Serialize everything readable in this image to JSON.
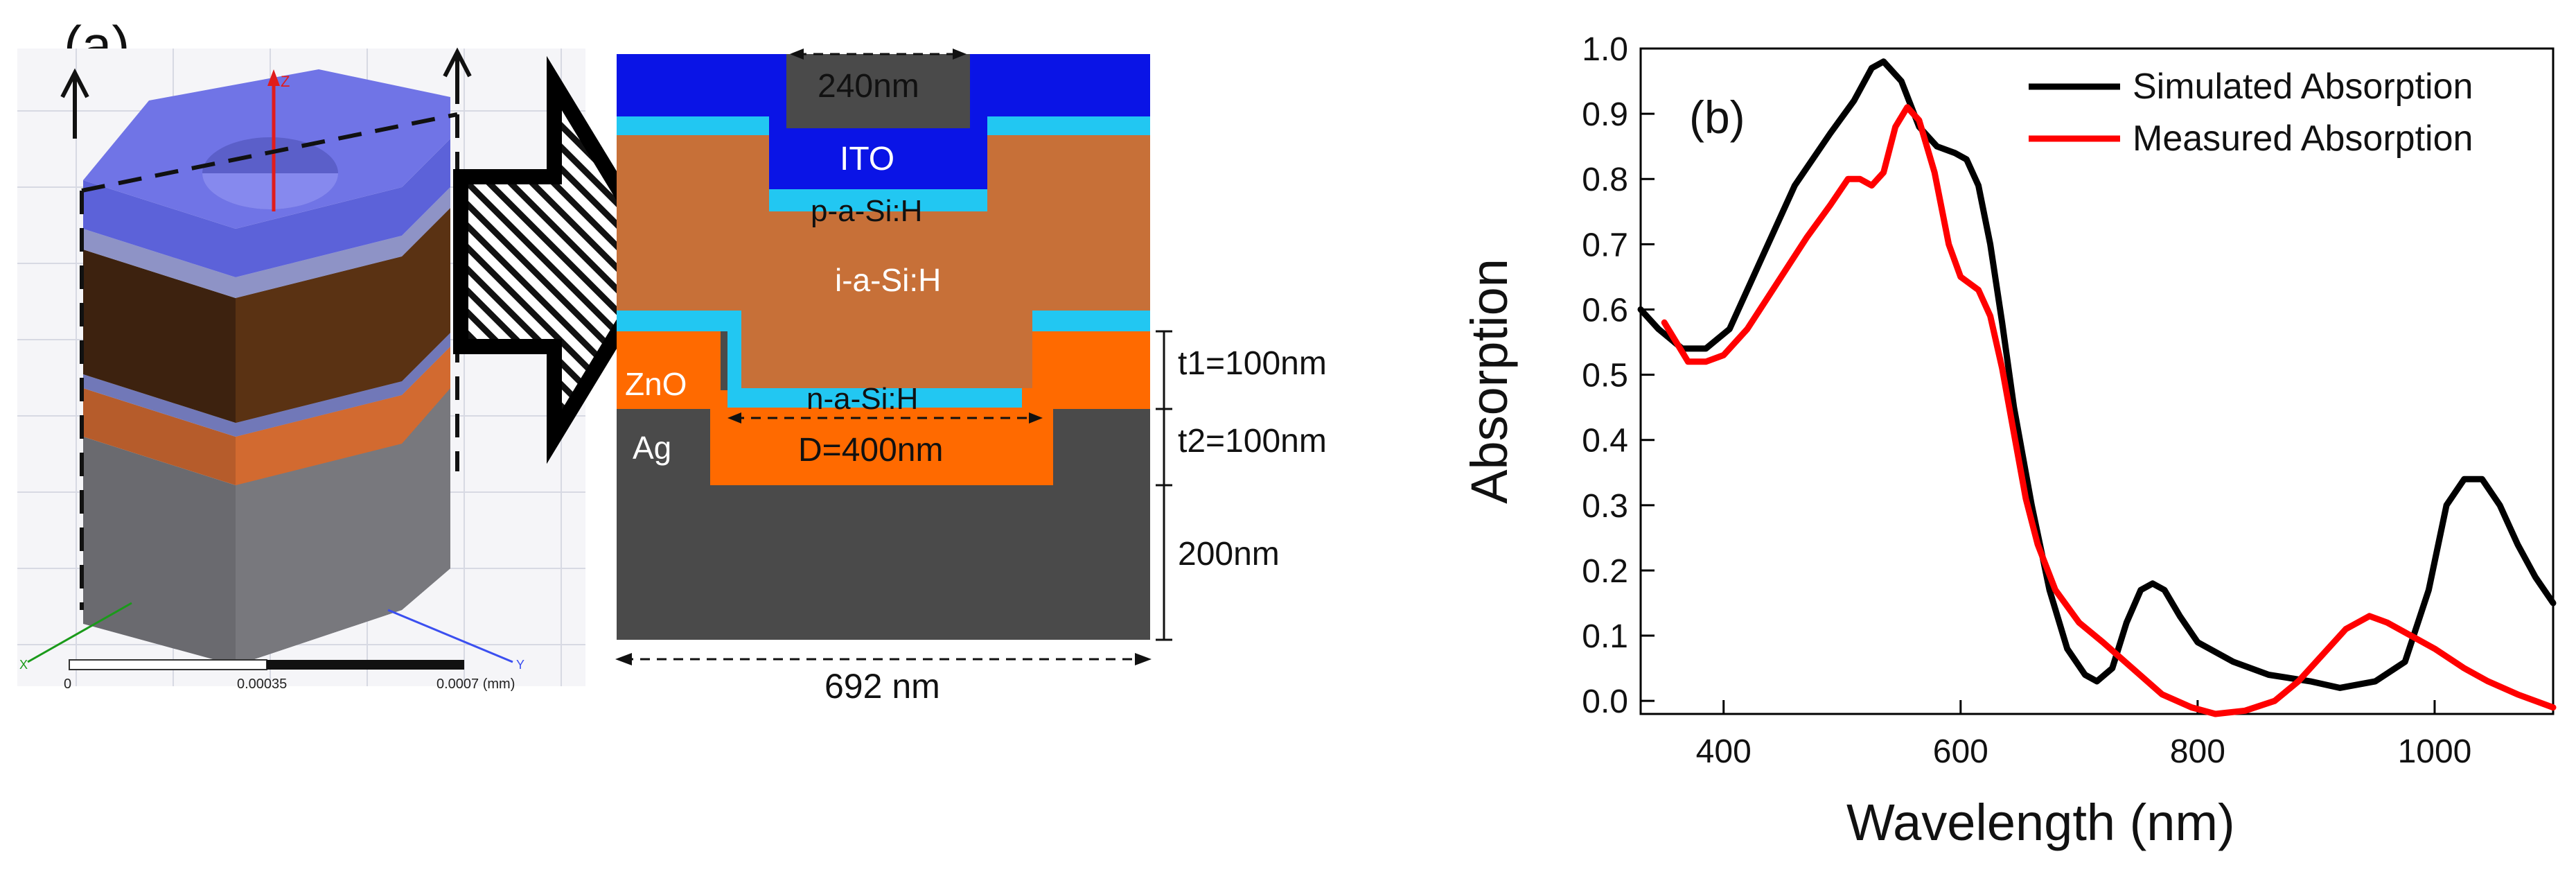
{
  "panel_a": {
    "label": "(a)",
    "scale_bar": {
      "ticks": [
        "0",
        "0.00035",
        "0.0007 (mm)"
      ]
    },
    "axis_letters": {
      "z": "Z",
      "y": "Y",
      "x": "X"
    },
    "layers": {
      "ito": "ITO",
      "p_layer": "p-a-Si:H",
      "i_layer": "i-a-Si:H",
      "n_layer": "n-a-Si:H",
      "zno": "ZnO",
      "ag": "Ag"
    },
    "dimensions": {
      "hole": "240nm",
      "t1": "t1=100nm",
      "t2": "t2=100nm",
      "d": "D=400nm",
      "substrate": "200nm",
      "width": "692 nm"
    },
    "colors": {
      "ito": "#0a14e6",
      "thin_doped": "#22c7f2",
      "intrinsic": "#c77038",
      "zno": "#ff6a00",
      "ag": "#4a4a4a"
    }
  },
  "panel_b": {
    "label": "(b)"
  },
  "chart_data": {
    "type": "line",
    "title": "",
    "xlabel": "Wavelength (nm)",
    "ylabel": "Absorption",
    "xlim": [
      330,
      1100
    ],
    "ylim": [
      -0.02,
      1.0
    ],
    "xticks": [
      400,
      600,
      800,
      1000
    ],
    "yticks": [
      0.0,
      0.1,
      0.2,
      0.3,
      0.4,
      0.5,
      0.6,
      0.7,
      0.8,
      0.9,
      1.0
    ],
    "ytick_labels": [
      "0.0",
      "0.1",
      "0.2",
      "0.3",
      "0.4",
      "0.5",
      "0.6",
      "0.7",
      "0.8",
      "0.9",
      "1.0"
    ],
    "legend_position": "top-right",
    "series": [
      {
        "name": "Simulated Absorption",
        "color": "#000000",
        "points": [
          [
            330,
            0.6
          ],
          [
            345,
            0.57
          ],
          [
            365,
            0.54
          ],
          [
            385,
            0.54
          ],
          [
            405,
            0.57
          ],
          [
            430,
            0.67
          ],
          [
            460,
            0.79
          ],
          [
            490,
            0.87
          ],
          [
            510,
            0.92
          ],
          [
            525,
            0.97
          ],
          [
            535,
            0.98
          ],
          [
            550,
            0.95
          ],
          [
            565,
            0.88
          ],
          [
            580,
            0.85
          ],
          [
            595,
            0.84
          ],
          [
            605,
            0.83
          ],
          [
            615,
            0.79
          ],
          [
            625,
            0.7
          ],
          [
            635,
            0.58
          ],
          [
            645,
            0.45
          ],
          [
            660,
            0.3
          ],
          [
            675,
            0.17
          ],
          [
            690,
            0.08
          ],
          [
            705,
            0.04
          ],
          [
            715,
            0.03
          ],
          [
            728,
            0.05
          ],
          [
            740,
            0.12
          ],
          [
            752,
            0.17
          ],
          [
            762,
            0.18
          ],
          [
            772,
            0.17
          ],
          [
            785,
            0.13
          ],
          [
            800,
            0.09
          ],
          [
            830,
            0.06
          ],
          [
            860,
            0.04
          ],
          [
            895,
            0.03
          ],
          [
            920,
            0.02
          ],
          [
            950,
            0.03
          ],
          [
            975,
            0.06
          ],
          [
            995,
            0.17
          ],
          [
            1010,
            0.3
          ],
          [
            1025,
            0.34
          ],
          [
            1040,
            0.34
          ],
          [
            1055,
            0.3
          ],
          [
            1070,
            0.24
          ],
          [
            1085,
            0.19
          ],
          [
            1100,
            0.15
          ]
        ]
      },
      {
        "name": "Measured Absorption",
        "color": "#ff0000",
        "points": [
          [
            350,
            0.58
          ],
          [
            360,
            0.55
          ],
          [
            370,
            0.52
          ],
          [
            385,
            0.52
          ],
          [
            400,
            0.53
          ],
          [
            420,
            0.57
          ],
          [
            445,
            0.64
          ],
          [
            470,
            0.71
          ],
          [
            490,
            0.76
          ],
          [
            505,
            0.8
          ],
          [
            515,
            0.8
          ],
          [
            525,
            0.79
          ],
          [
            535,
            0.81
          ],
          [
            545,
            0.88
          ],
          [
            555,
            0.91
          ],
          [
            565,
            0.89
          ],
          [
            578,
            0.81
          ],
          [
            590,
            0.7
          ],
          [
            600,
            0.65
          ],
          [
            615,
            0.63
          ],
          [
            625,
            0.59
          ],
          [
            635,
            0.51
          ],
          [
            645,
            0.41
          ],
          [
            655,
            0.31
          ],
          [
            665,
            0.24
          ],
          [
            680,
            0.17
          ],
          [
            700,
            0.12
          ],
          [
            720,
            0.09
          ],
          [
            745,
            0.05
          ],
          [
            770,
            0.01
          ],
          [
            795,
            -0.01
          ],
          [
            815,
            -0.02
          ],
          [
            840,
            -0.015
          ],
          [
            865,
            0.0
          ],
          [
            885,
            0.03
          ],
          [
            905,
            0.07
          ],
          [
            925,
            0.11
          ],
          [
            945,
            0.13
          ],
          [
            960,
            0.12
          ],
          [
            980,
            0.1
          ],
          [
            1000,
            0.08
          ],
          [
            1025,
            0.05
          ],
          [
            1045,
            0.03
          ],
          [
            1070,
            0.01
          ],
          [
            1100,
            -0.01
          ]
        ]
      }
    ]
  }
}
